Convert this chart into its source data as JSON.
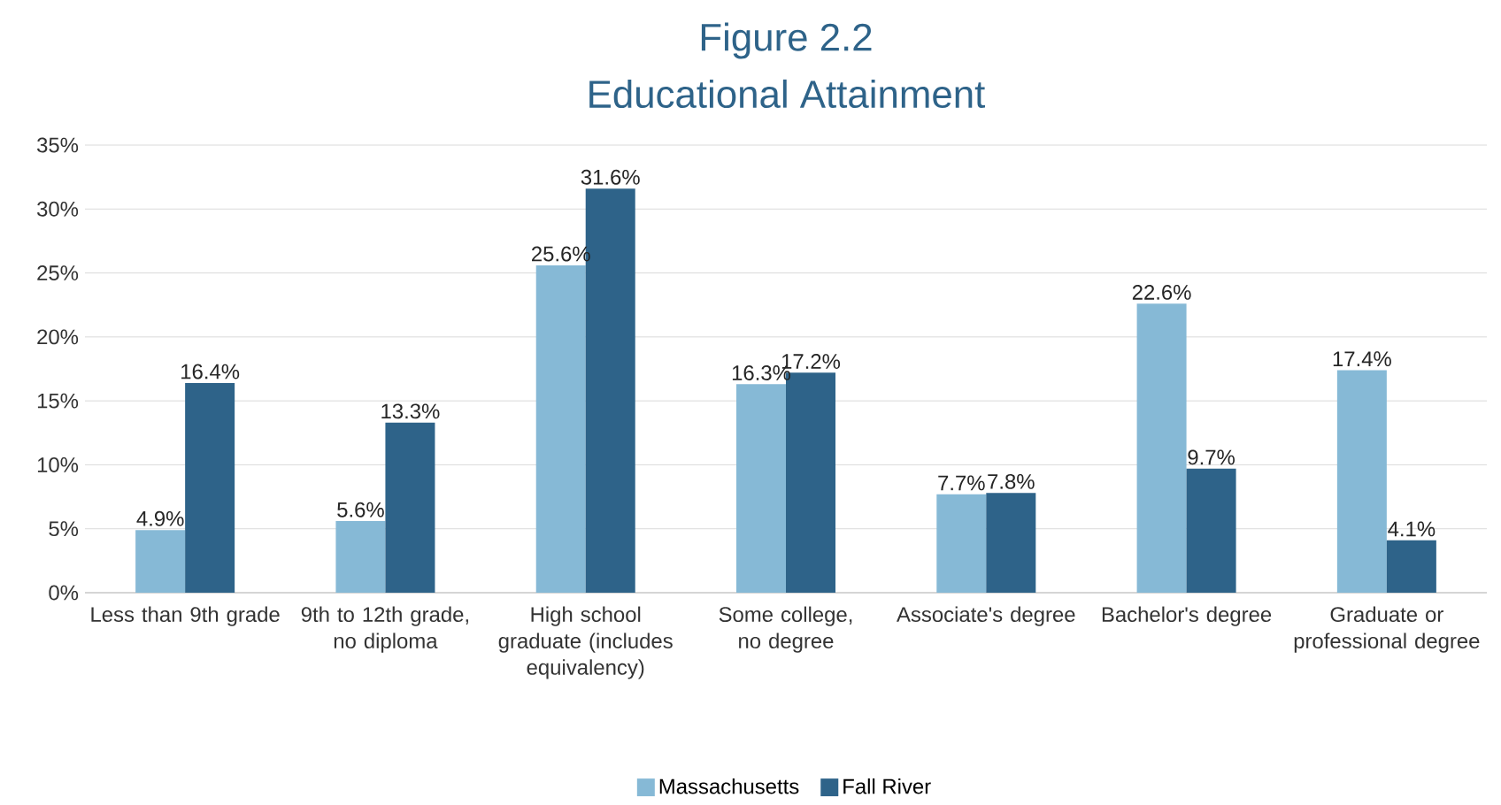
{
  "chart_data": {
    "type": "bar",
    "title": "Figure 2.2",
    "subtitle": "Educational Attainment",
    "categories": [
      "Less than 9th grade",
      "9th to 12th grade, no diploma",
      "High school graduate (includes equivalency)",
      "Some college, no degree",
      "Associate's degree",
      "Bachelor's degree",
      "Graduate or professional degree"
    ],
    "series": [
      {
        "name": "Massachusetts",
        "color": "#86b9d6",
        "values": [
          4.9,
          5.6,
          25.6,
          16.3,
          7.7,
          22.6,
          17.4
        ],
        "value_labels": [
          "4.9%",
          "5.6%",
          "25.6%",
          "16.3%",
          "7.7%",
          "22.6%",
          "17.4%"
        ]
      },
      {
        "name": "Fall River",
        "color": "#2e6389",
        "values": [
          16.4,
          13.3,
          31.6,
          17.2,
          7.8,
          9.7,
          4.1
        ],
        "value_labels": [
          "16.4%",
          "13.3%",
          "31.6%",
          "17.2%",
          "7.8%",
          "9.7%",
          "4.1%"
        ]
      }
    ],
    "ylim": [
      0,
      35
    ],
    "yticks": [
      {
        "value": 0,
        "label": "0%"
      },
      {
        "value": 5,
        "label": "5%"
      },
      {
        "value": 10,
        "label": "10%"
      },
      {
        "value": 15,
        "label": "15%"
      },
      {
        "value": 20,
        "label": "20%"
      },
      {
        "value": 25,
        "label": "25%"
      },
      {
        "value": 30,
        "label": "30%"
      },
      {
        "value": 35,
        "label": "35%"
      }
    ],
    "grid": "y",
    "legend": "bottom"
  }
}
